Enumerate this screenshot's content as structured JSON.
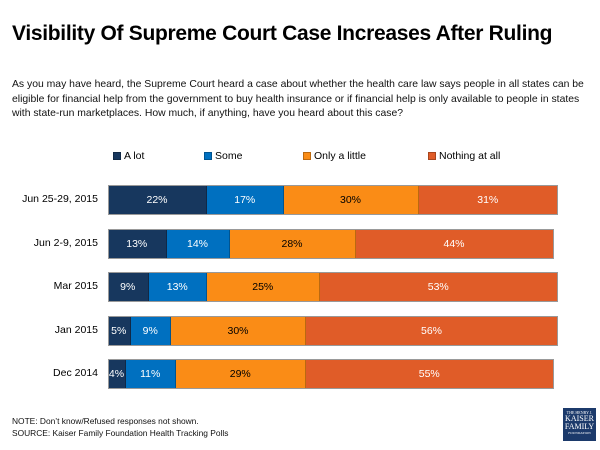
{
  "title": "Visibility Of Supreme Court Case Increases After Ruling",
  "subtitle": "As you may have heard, the Supreme Court heard a case about whether the health care law says people in all states can be eligible for financial help from the government to buy health insurance or if financial help is only available to people in states with state-run marketplaces. How much, if anything, have you heard about this case?",
  "note": "NOTE: Don’t know/Refused responses not shown.",
  "source": "SOURCE: Kaiser Family Foundation Health Tracking Polls",
  "logo": {
    "line1": "THE HENRY J.",
    "line2": "KAISER",
    "line3": "FAMILY",
    "line4": "FOUNDATION"
  },
  "chart_data": {
    "type": "bar",
    "orientation": "horizontal-stacked",
    "title": "Visibility Of Supreme Court Case Increases After Ruling",
    "categories": [
      "Jun 25-29, 2015",
      "Jun 2-9, 2015",
      "Mar 2015",
      "Jan 2015",
      "Dec 2014"
    ],
    "series": [
      {
        "name": "A lot",
        "color": "#17375e",
        "label_color": "#ffffff",
        "values": [
          22,
          13,
          9,
          5,
          4
        ]
      },
      {
        "name": "Some",
        "color": "#0070c0",
        "label_color": "#ffffff",
        "values": [
          17,
          14,
          13,
          9,
          11
        ]
      },
      {
        "name": "Only a little",
        "color": "#fa8c16",
        "label_color": "#000000",
        "values": [
          30,
          28,
          25,
          30,
          29
        ]
      },
      {
        "name": "Nothing at all",
        "color": "#e05c28",
        "label_color": "#ffffff",
        "values": [
          31,
          44,
          53,
          56,
          55
        ]
      }
    ],
    "value_suffix": "%",
    "legend_position": "top",
    "xlim": [
      0,
      100
    ],
    "grid": false
  }
}
